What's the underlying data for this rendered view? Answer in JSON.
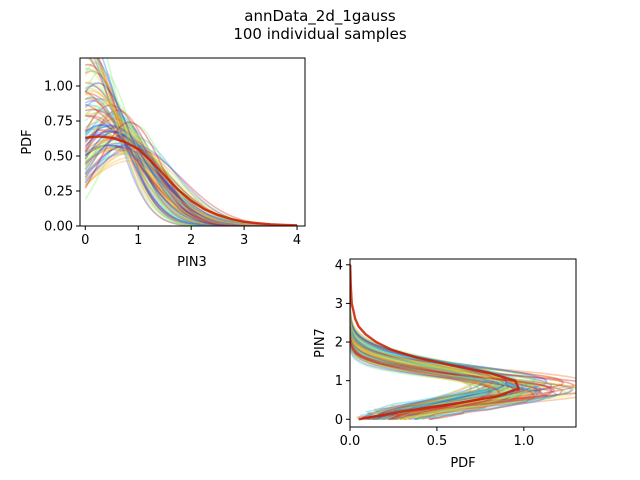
{
  "figure": {
    "title_line1": "annData_2d_1gauss",
    "title_line2": "100 individual samples"
  },
  "chart_data": [
    {
      "type": "line",
      "panel": "top-left",
      "xlabel": "PIN3",
      "ylabel": "PDF",
      "xlim": [
        -0.1,
        4.15
      ],
      "ylim": [
        0.0,
        1.2
      ],
      "xticks": [
        "0",
        "1",
        "2",
        "3",
        "4"
      ],
      "yticks": [
        "0.00",
        "0.25",
        "0.50",
        "0.75",
        "1.00"
      ],
      "x_range": [
        0.0,
        4.0
      ],
      "sample_count": 100,
      "mean_curve": {
        "x": [
          0.0,
          0.25,
          0.5,
          0.75,
          1.0,
          1.25,
          1.5,
          1.75,
          2.0,
          2.25,
          2.5,
          2.75,
          3.0,
          3.25,
          3.5,
          3.75,
          4.0
        ],
        "y": [
          0.63,
          0.64,
          0.63,
          0.6,
          0.55,
          0.46,
          0.36,
          0.26,
          0.18,
          0.12,
          0.08,
          0.05,
          0.03,
          0.02,
          0.012,
          0.008,
          0.005
        ]
      },
      "observed_spread": {
        "y_at_x0_min": 0.25,
        "y_at_x0_max": 1.14,
        "peak_max": 0.74
      }
    },
    {
      "type": "line",
      "panel": "bottom-right",
      "orientation": "horizontal",
      "xlabel": "PDF",
      "ylabel": "PIN7",
      "xlim": [
        0.0,
        1.3
      ],
      "ylim": [
        -0.2,
        4.15
      ],
      "xticks": [
        "0.0",
        "0.5",
        "1.0"
      ],
      "yticks": [
        "0",
        "1",
        "2",
        "3",
        "4"
      ],
      "y_range": [
        0.0,
        4.0
      ],
      "sample_count": 100,
      "mean_curve": {
        "y": [
          0.0,
          0.2,
          0.4,
          0.6,
          0.8,
          1.0,
          1.2,
          1.4,
          1.6,
          1.8,
          2.0,
          2.2,
          2.4,
          2.6,
          2.8,
          3.0,
          3.5,
          4.0
        ],
        "pdf": [
          0.05,
          0.3,
          0.6,
          0.85,
          0.97,
          0.95,
          0.8,
          0.58,
          0.38,
          0.24,
          0.15,
          0.09,
          0.05,
          0.03,
          0.02,
          0.01,
          0.004,
          0.001
        ]
      },
      "observed_spread": {
        "peak_pdf_min": 0.65,
        "peak_pdf_max": 1.25,
        "peak_y_min": 0.55,
        "peak_y_max": 1.05
      }
    }
  ],
  "colors": {
    "sample_palette": [
      "#1f3fd8",
      "#3a78ff",
      "#27c6d8",
      "#5fe8c4",
      "#8ff07a",
      "#c8f046",
      "#f3e43a",
      "#f6b73c",
      "#f07b2e",
      "#e03a2a",
      "#d21f1f"
    ],
    "mean": "#cc1a00",
    "axes": "#000000"
  }
}
